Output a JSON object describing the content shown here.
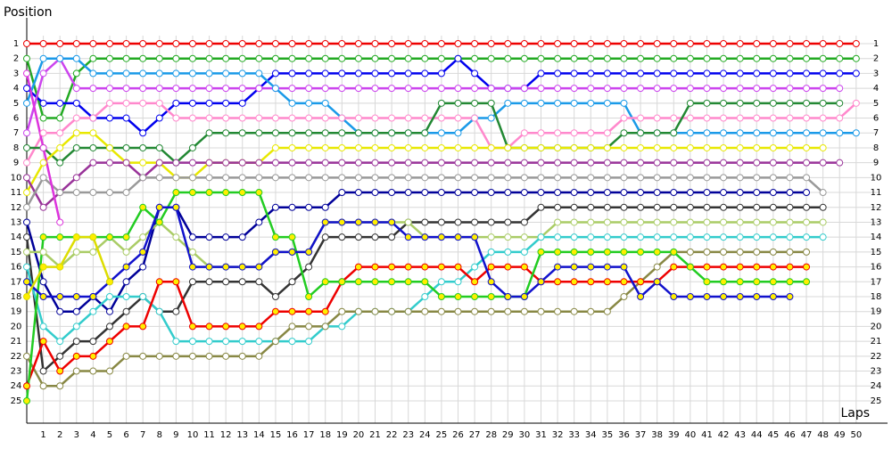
{
  "chart_data": {
    "type": "line",
    "y_label": "Position",
    "x_label": "Laps",
    "xlim": [
      0,
      51.3
    ],
    "ylim": [
      0,
      26.5
    ],
    "y_inverted": true,
    "grid": true,
    "xticks": [
      1,
      2,
      3,
      4,
      5,
      6,
      7,
      8,
      9,
      10,
      11,
      12,
      13,
      14,
      15,
      16,
      17,
      18,
      19,
      20,
      21,
      22,
      23,
      24,
      25,
      26,
      27,
      28,
      29,
      30,
      31,
      32,
      33,
      34,
      35,
      36,
      37,
      38,
      39,
      40,
      41,
      42,
      43,
      44,
      45,
      46,
      47,
      48,
      49,
      50
    ],
    "yticks": [
      1,
      2,
      3,
      4,
      5,
      6,
      7,
      8,
      9,
      10,
      11,
      12,
      13,
      14,
      15,
      16,
      17,
      18,
      19,
      20,
      21,
      22,
      23,
      24,
      25
    ],
    "x": [
      0,
      1,
      2,
      3,
      4,
      5,
      6,
      7,
      8,
      9,
      10,
      11,
      12,
      13,
      14,
      15,
      16,
      17,
      18,
      19,
      20,
      21,
      22,
      23,
      24,
      25,
      26,
      27,
      28,
      29,
      30,
      31,
      32,
      33,
      34,
      35,
      36,
      37,
      38,
      39,
      40,
      41,
      42,
      43,
      44,
      45,
      46,
      47,
      48,
      49,
      50
    ],
    "series": [
      {
        "color": "#ee0000",
        "marker_fill": "#ffffff",
        "values": [
          1,
          1,
          1,
          1,
          1,
          1,
          1,
          1,
          1,
          1,
          1,
          1,
          1,
          1,
          1,
          1,
          1,
          1,
          1,
          1,
          1,
          1,
          1,
          1,
          1,
          1,
          1,
          1,
          1,
          1,
          1,
          1,
          1,
          1,
          1,
          1,
          1,
          1,
          1,
          1,
          1,
          1,
          1,
          1,
          1,
          1,
          1,
          1,
          1,
          1,
          1
        ]
      },
      {
        "color": "#22aa22",
        "marker_fill": "#ffffff",
        "values": [
          2,
          6,
          6,
          3,
          2,
          2,
          2,
          2,
          2,
          2,
          2,
          2,
          2,
          2,
          2,
          2,
          2,
          2,
          2,
          2,
          2,
          2,
          2,
          2,
          2,
          2,
          2,
          2,
          2,
          2,
          2,
          2,
          2,
          2,
          2,
          2,
          2,
          2,
          2,
          2,
          2,
          2,
          2,
          2,
          2,
          2,
          2,
          2,
          2,
          2,
          2
        ]
      },
      {
        "color": "#0000ee",
        "marker_fill": "#ffffff",
        "values": [
          4,
          5,
          5,
          5,
          6,
          6,
          6,
          7,
          6,
          5,
          5,
          5,
          5,
          5,
          4,
          3,
          3,
          3,
          3,
          3,
          3,
          3,
          3,
          3,
          3,
          3,
          2,
          3,
          4,
          4,
          4,
          3,
          3,
          3,
          3,
          3,
          3,
          3,
          3,
          3,
          3,
          3,
          3,
          3,
          3,
          3,
          3,
          3,
          3,
          3,
          3
        ]
      },
      {
        "color": "#cc44ee",
        "marker_fill": "#ffffff",
        "values": [
          7,
          3,
          2,
          4,
          4,
          4,
          4,
          4,
          4,
          4,
          4,
          4,
          4,
          4,
          4,
          4,
          4,
          4,
          4,
          4,
          4,
          4,
          4,
          4,
          4,
          4,
          4,
          4,
          4,
          4,
          4,
          4,
          4,
          4,
          4,
          4,
          4,
          4,
          4,
          4,
          4,
          4,
          4,
          4,
          4,
          4,
          4,
          4,
          4,
          4,
          null
        ]
      },
      {
        "color": "#1a9ae8",
        "marker_fill": "#ffffff",
        "values": [
          5,
          2,
          2,
          2,
          3,
          3,
          3,
          3,
          3,
          3,
          3,
          3,
          3,
          3,
          3,
          4,
          5,
          5,
          5,
          6,
          7,
          7,
          7,
          7,
          7,
          7,
          7,
          6,
          6,
          5,
          5,
          5,
          5,
          5,
          5,
          5,
          5,
          7,
          7,
          7,
          7,
          7,
          7,
          7,
          7,
          7,
          7,
          7,
          7,
          7,
          7
        ]
      },
      {
        "color": "#ff88cc",
        "marker_fill": "#ffffff",
        "values": [
          9,
          7,
          7,
          6,
          6,
          5,
          5,
          5,
          5,
          6,
          6,
          6,
          6,
          6,
          6,
          6,
          6,
          6,
          6,
          6,
          6,
          6,
          6,
          6,
          6,
          6,
          6,
          6,
          8,
          8,
          7,
          7,
          7,
          7,
          7,
          7,
          6,
          6,
          6,
          6,
          6,
          6,
          6,
          6,
          6,
          6,
          6,
          6,
          6,
          6,
          5
        ]
      },
      {
        "color": "#228833",
        "marker_fill": "#ffffff",
        "values": [
          8,
          8,
          9,
          8,
          8,
          8,
          8,
          8,
          8,
          9,
          8,
          7,
          7,
          7,
          7,
          7,
          7,
          7,
          7,
          7,
          7,
          7,
          7,
          7,
          7,
          5,
          5,
          5,
          5,
          8,
          8,
          8,
          8,
          8,
          8,
          8,
          7,
          7,
          7,
          7,
          5,
          5,
          5,
          5,
          5,
          5,
          5,
          5,
          5,
          5,
          null
        ]
      },
      {
        "color": "#e8e800",
        "marker_fill": "#ffffff",
        "values": [
          11,
          9,
          8,
          7,
          7,
          8,
          9,
          9,
          9,
          10,
          10,
          9,
          9,
          9,
          9,
          8,
          8,
          8,
          8,
          8,
          8,
          8,
          8,
          8,
          8,
          8,
          8,
          8,
          8,
          8,
          8,
          8,
          8,
          8,
          8,
          8,
          8,
          8,
          8,
          8,
          8,
          8,
          8,
          8,
          8,
          8,
          8,
          8,
          8,
          null,
          null
        ]
      },
      {
        "color": "#993399",
        "marker_fill": "#ffffff",
        "values": [
          10,
          12,
          11,
          10,
          9,
          9,
          9,
          10,
          9,
          9,
          9,
          9,
          9,
          9,
          9,
          9,
          9,
          9,
          9,
          9,
          9,
          9,
          9,
          9,
          9,
          9,
          9,
          9,
          9,
          9,
          9,
          9,
          9,
          9,
          9,
          9,
          9,
          9,
          9,
          9,
          9,
          9,
          9,
          9,
          9,
          9,
          9,
          9,
          9,
          9,
          null
        ]
      },
      {
        "color": "#999999",
        "marker_fill": "#ffffff",
        "values": [
          12,
          10,
          11,
          11,
          11,
          11,
          11,
          10,
          10,
          10,
          10,
          10,
          10,
          10,
          10,
          10,
          10,
          10,
          10,
          10,
          10,
          10,
          10,
          10,
          10,
          10,
          10,
          10,
          10,
          10,
          10,
          10,
          10,
          10,
          10,
          10,
          10,
          10,
          10,
          10,
          10,
          10,
          10,
          10,
          10,
          10,
          10,
          10,
          11,
          null,
          null
        ]
      },
      {
        "color": "#000099",
        "marker_fill": "#ffffff",
        "values": [
          13,
          17,
          19,
          19,
          18,
          19,
          17,
          16,
          12,
          12,
          14,
          14,
          14,
          14,
          13,
          12,
          12,
          12,
          12,
          11,
          11,
          11,
          11,
          11,
          11,
          11,
          11,
          11,
          11,
          11,
          11,
          11,
          11,
          11,
          11,
          11,
          11,
          11,
          11,
          11,
          11,
          11,
          11,
          11,
          11,
          11,
          11,
          11,
          null,
          null,
          null
        ]
      },
      {
        "color": "#333333",
        "marker_fill": "#ffffff",
        "values": [
          14,
          23,
          22,
          21,
          21,
          20,
          19,
          18,
          19,
          19,
          17,
          17,
          17,
          17,
          17,
          18,
          17,
          16,
          14,
          14,
          14,
          14,
          14,
          13,
          13,
          13,
          13,
          13,
          13,
          13,
          13,
          12,
          12,
          12,
          12,
          12,
          12,
          12,
          12,
          12,
          12,
          12,
          12,
          12,
          12,
          12,
          12,
          12,
          12,
          null,
          null
        ]
      },
      {
        "color": "#aacc66",
        "marker_fill": "#ffffff",
        "values": [
          15,
          15,
          16,
          15,
          15,
          14,
          15,
          14,
          13,
          14,
          15,
          16,
          16,
          16,
          16,
          15,
          15,
          15,
          13,
          13,
          13,
          13,
          13,
          13,
          14,
          14,
          14,
          14,
          14,
          14,
          14,
          14,
          13,
          13,
          13,
          13,
          13,
          13,
          13,
          13,
          13,
          13,
          13,
          13,
          13,
          13,
          13,
          13,
          13,
          null,
          null
        ]
      },
      {
        "color": "#33cccc",
        "marker_fill": "#ffffff",
        "values": [
          16,
          20,
          21,
          20,
          19,
          18,
          18,
          18,
          19,
          21,
          21,
          21,
          21,
          21,
          21,
          21,
          21,
          21,
          20,
          20,
          19,
          19,
          19,
          19,
          18,
          17,
          17,
          16,
          15,
          15,
          15,
          14,
          14,
          14,
          14,
          14,
          14,
          14,
          14,
          14,
          14,
          14,
          14,
          14,
          14,
          14,
          14,
          14,
          14,
          null,
          null
        ]
      },
      {
        "color": "#888844",
        "marker_fill": "#ffffff",
        "values": [
          22,
          24,
          24,
          23,
          23,
          23,
          22,
          22,
          22,
          22,
          22,
          22,
          22,
          22,
          22,
          21,
          20,
          20,
          20,
          19,
          19,
          19,
          19,
          19,
          19,
          19,
          19,
          19,
          19,
          19,
          19,
          19,
          19,
          19,
          19,
          19,
          18,
          17,
          16,
          15,
          15,
          15,
          15,
          15,
          15,
          15,
          15,
          15,
          null,
          null,
          null
        ]
      },
      {
        "color": "#ee0000",
        "marker_fill": "#ffee00",
        "values": [
          24,
          21,
          23,
          22,
          22,
          21,
          20,
          20,
          17,
          17,
          20,
          20,
          20,
          20,
          20,
          19,
          19,
          19,
          19,
          17,
          16,
          16,
          16,
          16,
          16,
          16,
          16,
          17,
          16,
          16,
          16,
          17,
          17,
          17,
          17,
          17,
          17,
          17,
          17,
          16,
          16,
          16,
          16,
          16,
          16,
          16,
          16,
          16,
          null,
          null,
          null
        ]
      },
      {
        "color": "#22cc22",
        "marker_fill": "#ffee00",
        "values": [
          25,
          14,
          14,
          14,
          14,
          14,
          14,
          12,
          13,
          11,
          11,
          11,
          11,
          11,
          11,
          14,
          14,
          18,
          17,
          17,
          17,
          17,
          17,
          17,
          17,
          18,
          18,
          18,
          18,
          18,
          18,
          15,
          15,
          15,
          15,
          15,
          15,
          15,
          15,
          15,
          16,
          17,
          17,
          17,
          17,
          17,
          17,
          17,
          null,
          null,
          null
        ]
      },
      {
        "color": "#1111cc",
        "marker_fill": "#ffee00",
        "values": [
          17,
          18,
          18,
          18,
          18,
          17,
          16,
          15,
          12,
          12,
          16,
          16,
          16,
          16,
          16,
          15,
          15,
          15,
          13,
          13,
          13,
          13,
          13,
          14,
          14,
          14,
          14,
          14,
          17,
          18,
          18,
          17,
          16,
          16,
          16,
          16,
          16,
          18,
          17,
          18,
          18,
          18,
          18,
          18,
          18,
          18,
          18,
          null,
          null,
          null,
          null
        ]
      },
      {
        "color": "#dd33dd",
        "marker_fill": "#ffffff",
        "values": [
          3,
          8,
          13,
          null,
          null,
          null,
          null,
          null,
          null,
          null,
          null,
          null,
          null,
          null,
          null,
          null,
          null,
          null,
          null,
          null,
          null,
          null,
          null,
          null,
          null,
          null,
          null,
          null,
          null,
          null,
          null,
          null,
          null,
          null,
          null,
          null,
          null,
          null,
          null,
          null,
          null,
          null,
          null,
          null,
          null,
          null,
          null,
          null,
          null,
          null,
          null
        ]
      },
      {
        "color": "#dddd00",
        "marker_fill": "#ffee00",
        "values": [
          18,
          16,
          16,
          14,
          14,
          17,
          null,
          null,
          null,
          null,
          null,
          null,
          null,
          null,
          null,
          null,
          null,
          null,
          null,
          null,
          null,
          null,
          null,
          null,
          null,
          null,
          null,
          null,
          null,
          null,
          null,
          null,
          null,
          null,
          null,
          null,
          null,
          null,
          null,
          null,
          null,
          null,
          null,
          null,
          null,
          null,
          null,
          null,
          null,
          null,
          null
        ]
      }
    ]
  }
}
